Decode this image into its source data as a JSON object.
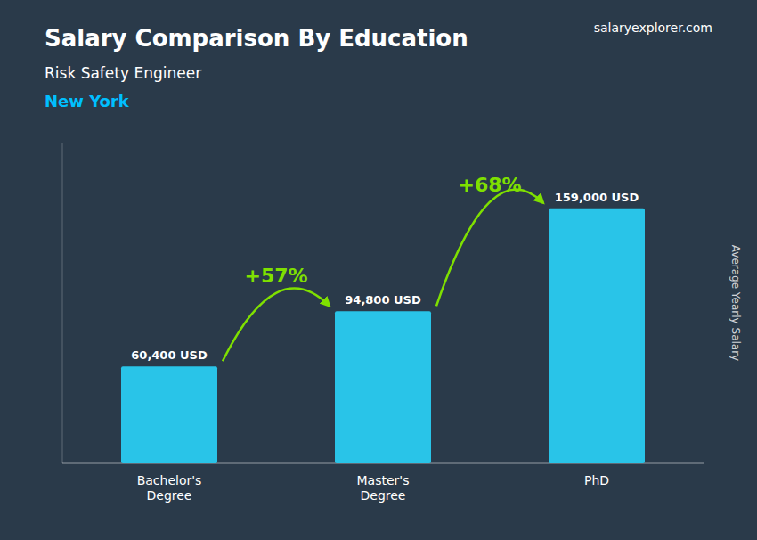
{
  "chart_data": {
    "type": "bar",
    "title": "Salary Comparison By Education",
    "subtitle": "Risk Safety Engineer",
    "location": "New York",
    "watermark": "salaryexplorer.com",
    "ylabel": "Average Yearly Salary",
    "categories": [
      "Bachelor's\nDegree",
      "Master's\nDegree",
      "PhD"
    ],
    "values": [
      60400,
      94800,
      159000
    ],
    "value_labels": [
      "60,400 USD",
      "94,800 USD",
      "159,000 USD"
    ],
    "data_labels": true,
    "color": "#29C4E8",
    "annotations": [
      "+57%",
      "+68%"
    ],
    "ylim": [
      0,
      200000
    ],
    "tick_labels": "x",
    "grid": false
  }
}
